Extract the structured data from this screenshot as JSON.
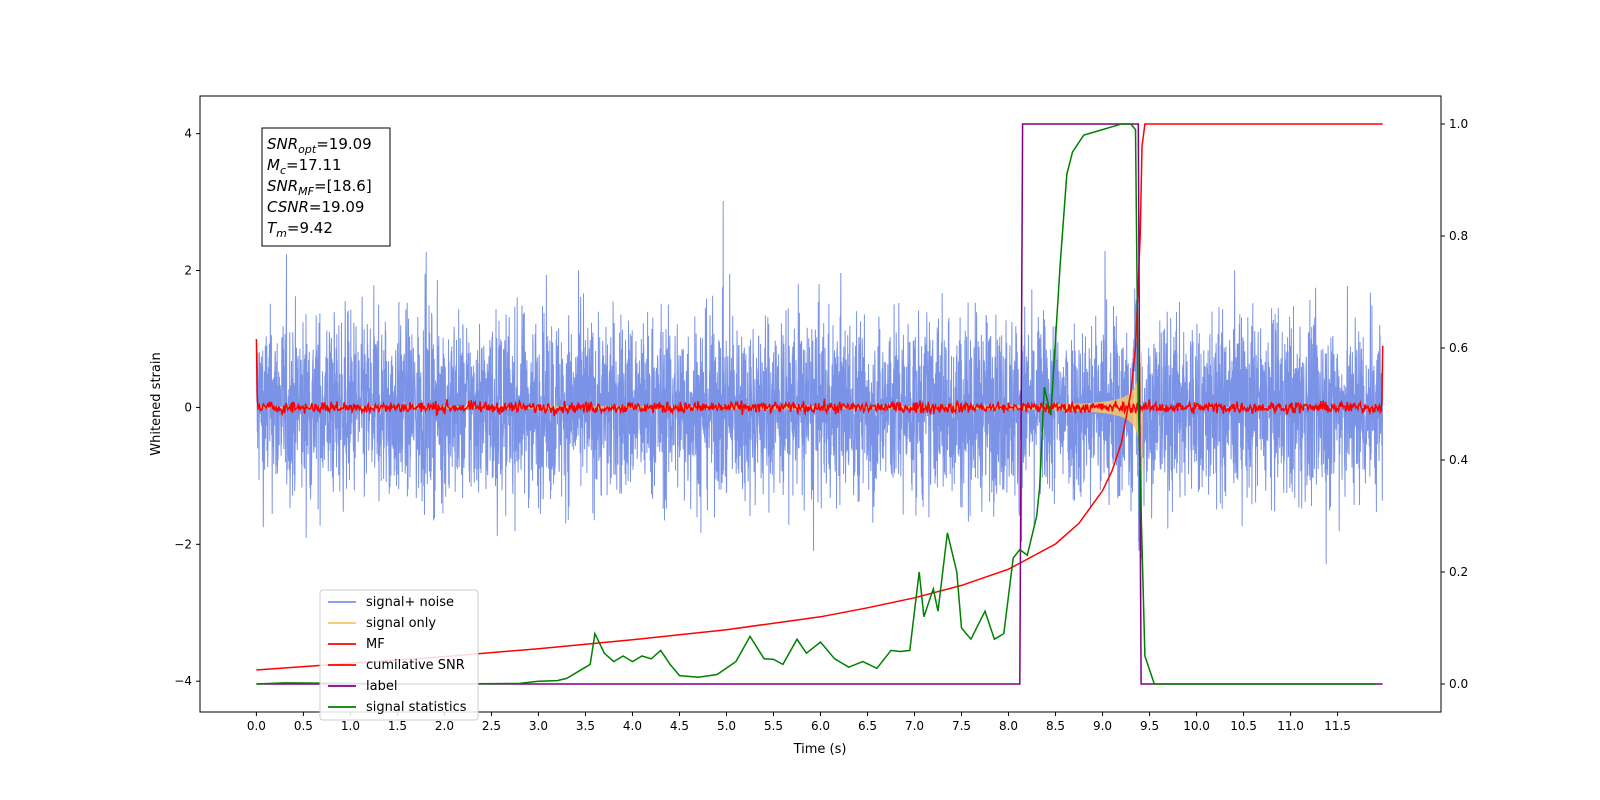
{
  "chart_data": {
    "type": "line",
    "title": "",
    "xlabel": "Time (s)",
    "ylabel": "Whitened strain",
    "xlim": [
      -0.6,
      12.6
    ],
    "ylim_left": [
      -4.45,
      4.55
    ],
    "ylim_right": [
      -0.05,
      1.05
    ],
    "x_ticks": [
      "0.0",
      "0.5",
      "1.0",
      "1.5",
      "2.0",
      "2.5",
      "3.0",
      "3.5",
      "4.0",
      "4.5",
      "5.0",
      "5.5",
      "6.0",
      "6.5",
      "7.0",
      "7.5",
      "8.0",
      "8.5",
      "9.0",
      "9.5",
      "10.0",
      "10.5",
      "11.0",
      "11.5"
    ],
    "y_ticks_left": [
      "−4",
      "−2",
      "0",
      "2",
      "4"
    ],
    "y_ticks_right": [
      "0.0",
      "0.2",
      "0.4",
      "0.6",
      "0.8",
      "1.0"
    ],
    "info_box": [
      {
        "main": "SNR",
        "sub": "opt",
        "value": "=19.09"
      },
      {
        "main": "M",
        "sub": "c",
        "value": "=17.11"
      },
      {
        "main": "SNR",
        "sub": "MF",
        "value": "=[18.6]"
      },
      {
        "main": "CSNR",
        "sub": "",
        "value": "=19.09"
      },
      {
        "main": "T",
        "sub": "m",
        "value": "=9.42"
      }
    ],
    "series": [
      {
        "name": "signal+ noise",
        "color": "#7b93e6",
        "axis": "left",
        "style": "noise band, amplitude ±2.5 with spikes to ±3.5, x 0 to 11.98"
      },
      {
        "name": "signal only",
        "color": "#f5c46a",
        "axis": "left",
        "style": "chirp growing from 0 to ±3 at 9.42, then 0"
      },
      {
        "name": "MF",
        "color": "#ff0000",
        "axis": "left",
        "x_range": [
          0,
          11.98
        ],
        "level": 0.0,
        "noise": 0.1,
        "edge_values": [
          1.0,
          0.9
        ]
      },
      {
        "name": "cumilative SNR",
        "color": "#ff0000",
        "axis": "right",
        "points": [
          [
            0,
            0.025
          ],
          [
            1,
            0.037
          ],
          [
            2,
            0.049
          ],
          [
            3,
            0.063
          ],
          [
            4,
            0.079
          ],
          [
            5,
            0.097
          ],
          [
            6,
            0.12
          ],
          [
            6.5,
            0.136
          ],
          [
            7,
            0.154
          ],
          [
            7.5,
            0.176
          ],
          [
            8,
            0.205
          ],
          [
            8.5,
            0.25
          ],
          [
            8.75,
            0.287
          ],
          [
            9,
            0.345
          ],
          [
            9.1,
            0.38
          ],
          [
            9.2,
            0.43
          ],
          [
            9.3,
            0.52
          ],
          [
            9.35,
            0.6
          ],
          [
            9.4,
            0.8
          ],
          [
            9.42,
            0.96
          ],
          [
            9.45,
            1.0
          ],
          [
            11.98,
            1.0
          ]
        ]
      },
      {
        "name": "label",
        "color": "#800080",
        "axis": "right",
        "points": [
          [
            0,
            0
          ],
          [
            8.12,
            0
          ],
          [
            8.15,
            1
          ],
          [
            9.38,
            1
          ],
          [
            9.41,
            0
          ],
          [
            11.98,
            0
          ]
        ]
      },
      {
        "name": "signal statistics",
        "color": "#008000",
        "axis": "right",
        "points": [
          [
            0,
            0
          ],
          [
            0.3,
            0.002
          ],
          [
            1,
            0.001
          ],
          [
            2,
            0
          ],
          [
            2.8,
            0.001
          ],
          [
            3,
            0.005
          ],
          [
            3.2,
            0.006
          ],
          [
            3.3,
            0.01
          ],
          [
            3.5,
            0.03
          ],
          [
            3.55,
            0.035
          ],
          [
            3.6,
            0.09
          ],
          [
            3.7,
            0.055
          ],
          [
            3.8,
            0.04
          ],
          [
            3.9,
            0.05
          ],
          [
            4,
            0.04
          ],
          [
            4.1,
            0.05
          ],
          [
            4.2,
            0.045
          ],
          [
            4.3,
            0.06
          ],
          [
            4.4,
            0.035
          ],
          [
            4.5,
            0.015
          ],
          [
            4.7,
            0.012
          ],
          [
            4.9,
            0.017
          ],
          [
            5.1,
            0.04
          ],
          [
            5.25,
            0.085
          ],
          [
            5.4,
            0.045
          ],
          [
            5.5,
            0.044
          ],
          [
            5.6,
            0.035
          ],
          [
            5.75,
            0.08
          ],
          [
            5.85,
            0.055
          ],
          [
            6,
            0.075
          ],
          [
            6.15,
            0.045
          ],
          [
            6.3,
            0.03
          ],
          [
            6.45,
            0.04
          ],
          [
            6.6,
            0.028
          ],
          [
            6.75,
            0.06
          ],
          [
            6.85,
            0.058
          ],
          [
            6.95,
            0.06
          ],
          [
            7.05,
            0.2
          ],
          [
            7.1,
            0.12
          ],
          [
            7.2,
            0.17
          ],
          [
            7.25,
            0.13
          ],
          [
            7.35,
            0.27
          ],
          [
            7.45,
            0.2
          ],
          [
            7.5,
            0.1
          ],
          [
            7.6,
            0.08
          ],
          [
            7.75,
            0.13
          ],
          [
            7.85,
            0.08
          ],
          [
            7.95,
            0.09
          ],
          [
            8.05,
            0.225
          ],
          [
            8.12,
            0.24
          ],
          [
            8.2,
            0.23
          ],
          [
            8.3,
            0.3
          ],
          [
            8.33,
            0.35
          ],
          [
            8.38,
            0.53
          ],
          [
            8.45,
            0.48
          ],
          [
            8.55,
            0.75
          ],
          [
            8.62,
            0.91
          ],
          [
            8.68,
            0.95
          ],
          [
            8.8,
            0.98
          ],
          [
            9,
            0.99
          ],
          [
            9.1,
            0.995
          ],
          [
            9.2,
            1.0
          ],
          [
            9.3,
            1.0
          ],
          [
            9.35,
            0.99
          ],
          [
            9.38,
            0.5
          ],
          [
            9.45,
            0.05
          ],
          [
            9.55,
            0
          ],
          [
            11.9,
            0
          ]
        ]
      }
    ],
    "legend_location": "lower-left",
    "grid": false
  }
}
